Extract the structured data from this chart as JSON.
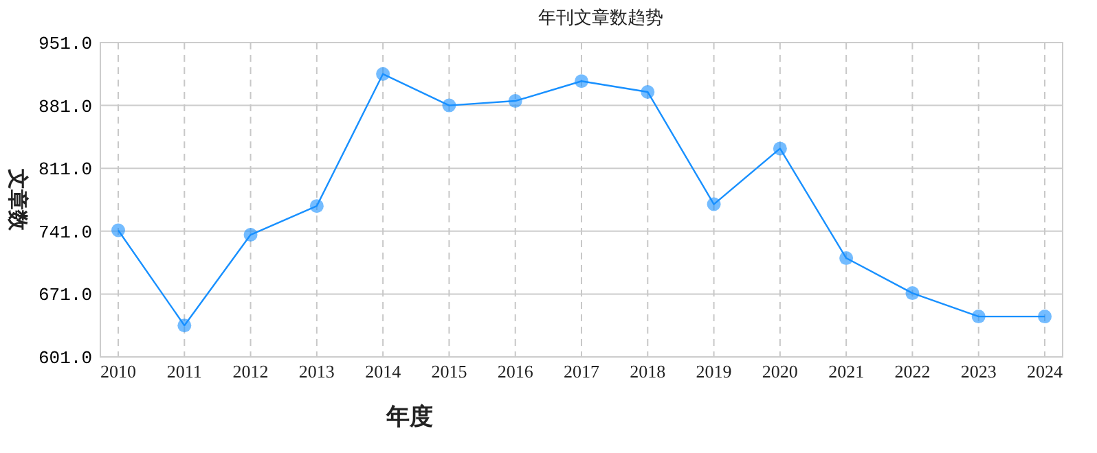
{
  "chart_data": {
    "type": "line",
    "title": "年刊文章数趋势",
    "xlabel": "年度",
    "ylabel": "文章数",
    "categories": [
      "2010",
      "2011",
      "2012",
      "2013",
      "2014",
      "2015",
      "2016",
      "2017",
      "2018",
      "2019",
      "2020",
      "2021",
      "2022",
      "2023",
      "2024"
    ],
    "series": [
      {
        "color": "#1890ff",
        "values": [
          742,
          636,
          737,
          769,
          916,
          881,
          886,
          908,
          896,
          771,
          833,
          711,
          672,
          646,
          646
        ]
      }
    ],
    "ylim": [
      601,
      951
    ],
    "yticks": [
      {
        "value": 601,
        "label": "601.0"
      },
      {
        "value": 671,
        "label": "671.0"
      },
      {
        "value": 741,
        "label": "741.0"
      },
      {
        "value": 811,
        "label": "811.0"
      },
      {
        "value": 881,
        "label": "881.0"
      },
      {
        "value": 951,
        "label": "951.0"
      }
    ],
    "grid": true,
    "marker": "circle",
    "line_style": "solid"
  }
}
